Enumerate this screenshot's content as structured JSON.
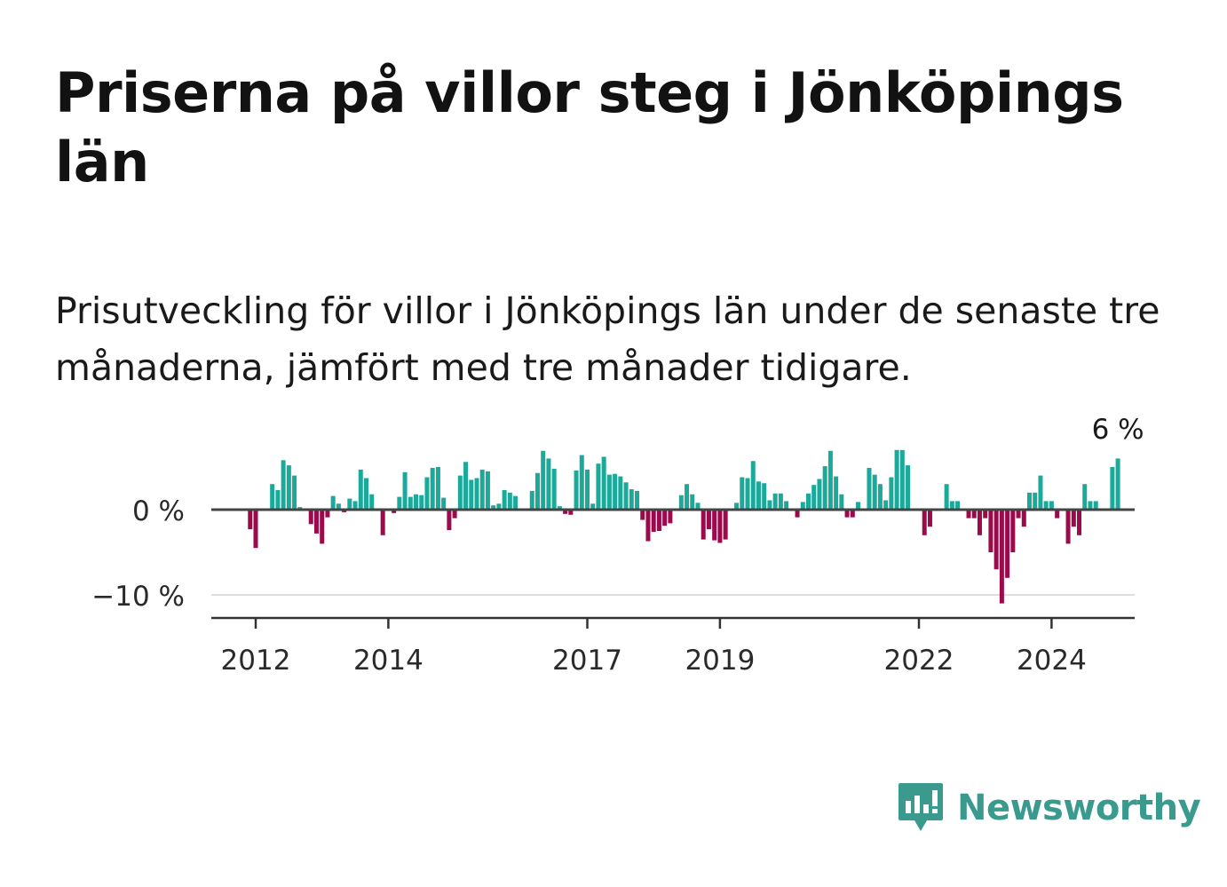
{
  "title": "Priserna på villor steg i Jönköpings län",
  "subtitle": "Prisutveckling för villor i Jönköpings län under de senaste tre månaderna, jämfört med tre månader tidigare.",
  "brand": {
    "name": "Newsworthy",
    "icon": "newsworthy-logo-icon",
    "color": "#3a9a8d"
  },
  "chart_data": {
    "type": "bar",
    "title": "",
    "xlabel": "",
    "ylabel": "",
    "grid": true,
    "ylim": [
      -12.5,
      7
    ],
    "y_ticks": [
      {
        "value": 0,
        "label": "0 %"
      },
      {
        "value": -10,
        "label": "−10 %"
      }
    ],
    "x_ticks": [
      {
        "year": 2012,
        "label": "2012"
      },
      {
        "year": 2014,
        "label": "2014"
      },
      {
        "year": 2017,
        "label": "2017"
      },
      {
        "year": 2019,
        "label": "2019"
      },
      {
        "year": 2022,
        "label": "2022"
      },
      {
        "year": 2024,
        "label": "2024"
      }
    ],
    "x_start": "2011-12",
    "colors": {
      "positive": "#1ba99a",
      "negative": "#9b0a4b"
    },
    "annotation": {
      "label": "6 %",
      "value": 6
    },
    "values": [
      -2.3,
      -4.5,
      0,
      0,
      3.0,
      2.3,
      5.8,
      5.2,
      4.0,
      0.3,
      0,
      -1.7,
      -2.8,
      -4.0,
      -0.9,
      1.6,
      0.7,
      -0.3,
      1.3,
      1.0,
      4.7,
      3.7,
      1.8,
      0,
      -3.0,
      0,
      -0.4,
      1.5,
      4.4,
      1.5,
      1.8,
      1.7,
      3.8,
      4.9,
      5.0,
      1.4,
      -2.4,
      -1.0,
      4.0,
      5.6,
      3.5,
      3.7,
      4.7,
      4.5,
      0.5,
      0.7,
      2.3,
      2.0,
      1.6,
      0,
      0,
      2.2,
      4.3,
      6.9,
      6.0,
      4.8,
      0.4,
      -0.5,
      -0.6,
      4.6,
      6.4,
      4.7,
      0.7,
      5.4,
      6.2,
      4.1,
      4.2,
      3.9,
      3.2,
      2.4,
      2.2,
      -1.2,
      -3.7,
      -2.6,
      -2.5,
      -1.9,
      -1.6,
      0,
      1.7,
      3.0,
      1.8,
      0.8,
      -3.5,
      -2.3,
      -3.6,
      -3.9,
      -3.5,
      0,
      0.8,
      3.8,
      3.7,
      5.7,
      3.3,
      3.1,
      1.1,
      1.9,
      1.9,
      1.0,
      0,
      -0.9,
      0.9,
      1.9,
      2.9,
      3.6,
      5.1,
      6.9,
      3.9,
      1.8,
      -0.9,
      -0.9,
      0.9,
      0,
      4.9,
      4.1,
      3.0,
      1.1,
      3.8,
      7.0,
      7.0,
      5.2,
      0,
      0,
      -3.0,
      -2.0,
      0,
      0,
      3.0,
      1.0,
      1.0,
      0,
      -1.0,
      -1.0,
      -3.0,
      -1.0,
      -5.0,
      -7.0,
      -11.0,
      -8.0,
      -5.0,
      -1.0,
      -2.0,
      2.0,
      2.0,
      4.0,
      1.0,
      1.0,
      -1.0,
      0,
      -4.0,
      -2.0,
      -3.0,
      3.0,
      1.0,
      1.0,
      0,
      0,
      5.0,
      6.0
    ]
  }
}
